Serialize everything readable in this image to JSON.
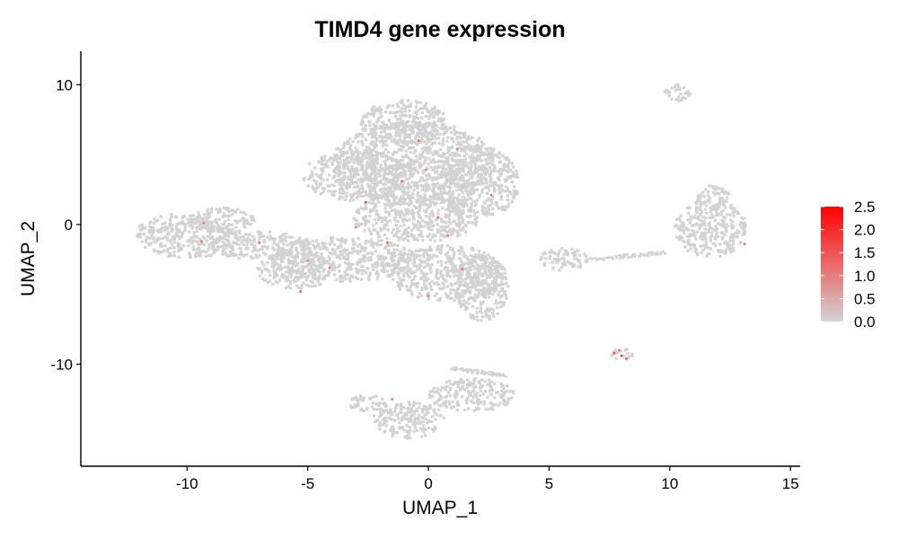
{
  "chart_data": {
    "type": "scatter",
    "title": "TIMD4 gene expression",
    "xlabel": "UMAP_1",
    "ylabel": "UMAP_2",
    "xlim": [
      -14.4,
      15.4
    ],
    "ylim": [
      -17.3,
      12.4
    ],
    "x_ticks": [
      -10,
      -5,
      0,
      5,
      10,
      15
    ],
    "x_tick_labels": [
      "-10",
      "-5",
      "0",
      "5",
      "10",
      "15"
    ],
    "y_ticks": [
      10,
      0,
      -10
    ],
    "y_tick_labels": [
      "10",
      "0",
      "-10"
    ],
    "grid": false,
    "legend": {
      "placement": "right",
      "labels": [
        "2.5",
        "2.0",
        "1.5",
        "1.0",
        "0.5",
        "0.0"
      ],
      "range": [
        0,
        2.5
      ],
      "color_low": "#d3d3d3",
      "color_high": "#ff0000"
    },
    "base_color": "#d3d3d3",
    "clusters": [
      {
        "name": "central-main",
        "cx": -0.6,
        "cy": 4.4,
        "rx": 3.4,
        "ry": 3.0
      },
      {
        "name": "central-upper",
        "cx": -1.0,
        "cy": 7.3,
        "rx": 1.8,
        "ry": 1.6
      },
      {
        "name": "central-right",
        "cx": 2.0,
        "cy": 3.0,
        "rx": 1.8,
        "ry": 2.6
      },
      {
        "name": "central-left",
        "cx": -3.0,
        "cy": 3.5,
        "rx": 2.2,
        "ry": 1.8
      },
      {
        "name": "central-lower",
        "cx": -0.5,
        "cy": 0.5,
        "rx": 2.6,
        "ry": 1.8
      },
      {
        "name": "lower-middle",
        "cx": -3.5,
        "cy": -2.5,
        "rx": 3.0,
        "ry": 1.6
      },
      {
        "name": "lower-middle-left",
        "cx": -5.5,
        "cy": -3.3,
        "rx": 1.6,
        "ry": 1.3
      },
      {
        "name": "bridge",
        "cx": -7.0,
        "cy": -1.5,
        "rx": 2.2,
        "ry": 1.0
      },
      {
        "name": "left",
        "cx": -10.0,
        "cy": -0.8,
        "rx": 2.2,
        "ry": 1.6
      },
      {
        "name": "left-top",
        "cx": -8.5,
        "cy": 0.3,
        "rx": 1.3,
        "ry": 0.9
      },
      {
        "name": "lower-right",
        "cx": 0.8,
        "cy": -3.5,
        "rx": 2.4,
        "ry": 2.0
      },
      {
        "name": "lower-right-tail",
        "cx": 2.2,
        "cy": -4.5,
        "rx": 1.1,
        "ry": 2.4
      },
      {
        "name": "right",
        "cx": 11.7,
        "cy": -0.3,
        "rx": 1.5,
        "ry": 2.1
      },
      {
        "name": "right-top",
        "cx": 11.8,
        "cy": 1.9,
        "rx": 0.7,
        "ry": 0.9
      },
      {
        "name": "far-upper-right",
        "cx": 10.3,
        "cy": 9.4,
        "rx": 0.6,
        "ry": 0.6
      },
      {
        "name": "small-right",
        "cx": 8.0,
        "cy": -9.3,
        "rx": 0.5,
        "ry": 0.4
      },
      {
        "name": "bottom",
        "cx": -0.8,
        "cy": -14.0,
        "rx": 1.5,
        "ry": 1.3
      },
      {
        "name": "bottom-left",
        "cx": -2.5,
        "cy": -12.8,
        "rx": 0.8,
        "ry": 0.6
      },
      {
        "name": "bottom-right",
        "cx": 1.8,
        "cy": -12.2,
        "rx": 1.8,
        "ry": 1.2
      },
      {
        "name": "middle-right-sparse",
        "cx": 5.6,
        "cy": -2.5,
        "rx": 1.0,
        "ry": 0.8
      }
    ],
    "streaks": [
      {
        "name": "bridge-streak",
        "x1": 6.8,
        "y1": -2.5,
        "x2": 9.8,
        "y2": -2.0
      },
      {
        "name": "bottom-streak",
        "x1": 1.0,
        "y1": -10.3,
        "x2": 3.2,
        "y2": -10.8
      }
    ],
    "expressing_points": [
      {
        "x": -9.3,
        "y": 0.1,
        "value": 1.0
      },
      {
        "x": -9.4,
        "y": -1.2,
        "value": 1.2
      },
      {
        "x": -7.0,
        "y": -1.3,
        "value": 1.0
      },
      {
        "x": -5.3,
        "y": -4.8,
        "value": 1.3
      },
      {
        "x": -5.0,
        "y": -2.6,
        "value": 0.8
      },
      {
        "x": -4.1,
        "y": -3.1,
        "value": 1.0
      },
      {
        "x": -2.6,
        "y": 1.6,
        "value": 1.5
      },
      {
        "x": -3.0,
        "y": -0.2,
        "value": 0.9
      },
      {
        "x": -1.7,
        "y": -1.3,
        "value": 1.1
      },
      {
        "x": -1.1,
        "y": 3.1,
        "value": 1.2
      },
      {
        "x": -0.4,
        "y": 6.0,
        "value": 1.4
      },
      {
        "x": 1.2,
        "y": 5.4,
        "value": 1.0
      },
      {
        "x": -0.1,
        "y": 3.9,
        "value": 0.9
      },
      {
        "x": 0.4,
        "y": 0.5,
        "value": 1.3
      },
      {
        "x": 2.6,
        "y": 2.1,
        "value": 1.0
      },
      {
        "x": 0.8,
        "y": -0.8,
        "value": 0.9
      },
      {
        "x": 1.4,
        "y": -3.2,
        "value": 1.2
      },
      {
        "x": 0.0,
        "y": -5.1,
        "value": 1.0
      },
      {
        "x": -1.5,
        "y": -12.5,
        "value": 1.1
      },
      {
        "x": 13.1,
        "y": -1.4,
        "value": 1.2
      },
      {
        "x": 7.7,
        "y": -9.2,
        "value": 1.5
      },
      {
        "x": 8.0,
        "y": -9.4,
        "value": 1.8
      },
      {
        "x": 8.2,
        "y": -9.6,
        "value": 1.4
      },
      {
        "x": 7.9,
        "y": -9.0,
        "value": 1.1
      }
    ]
  }
}
